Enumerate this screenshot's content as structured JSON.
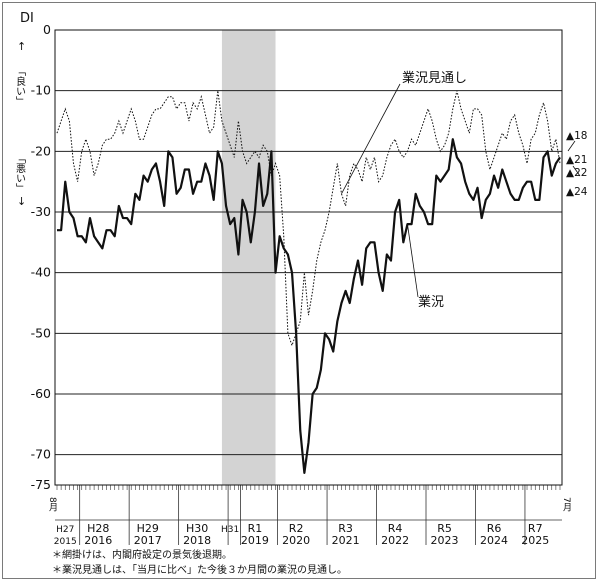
{
  "chart_data": {
    "type": "line",
    "ylabel": "DI",
    "ylim": [
      -75,
      0
    ],
    "yticks": [
      0,
      -10,
      -20,
      -30,
      -40,
      -50,
      -60,
      -70,
      -75
    ],
    "yaxis_note_top": "「良い」",
    "yaxis_note_bottom": "「悪い」",
    "arrow_up": "↑",
    "arrow_down": "↓",
    "start_month": "8月",
    "end_month": "7月",
    "recession_shade": {
      "from_index": 40,
      "to_index": 53
    },
    "year_labels": [
      {
        "top": "H27",
        "bottom": "2015",
        "index": 2
      },
      {
        "top": "H28",
        "bottom": "2016",
        "index": 10
      },
      {
        "top": "H29",
        "bottom": "2017",
        "index": 22
      },
      {
        "top": "H30",
        "bottom": "2018",
        "index": 34
      },
      {
        "top": "H31",
        "bottom": "",
        "index": 42
      },
      {
        "top": "R1",
        "bottom": "2019",
        "index": 48
      },
      {
        "top": "R2",
        "bottom": "2020",
        "index": 58
      },
      {
        "top": "R3",
        "bottom": "2021",
        "index": 70
      },
      {
        "top": "R4",
        "bottom": "2022",
        "index": 82
      },
      {
        "top": "R5",
        "bottom": "2023",
        "index": 94
      },
      {
        "top": "R6",
        "bottom": "2024",
        "index": 106
      },
      {
        "top": "R7",
        "bottom": "2025",
        "index": 116
      }
    ],
    "year_dividers": [
      5,
      17,
      29,
      41,
      44,
      53,
      65,
      77,
      89,
      101,
      113
    ],
    "series": [
      {
        "name": "業況",
        "style": "solid",
        "values": [
          -33,
          -33,
          -25,
          -30,
          -31,
          -34,
          -34,
          -35,
          -31,
          -34,
          -35,
          -36,
          -33,
          -33,
          -34,
          -29,
          -31,
          -31,
          -32,
          -27,
          -28,
          -24,
          -25,
          -23,
          -22,
          -25,
          -29,
          -20,
          -21,
          -27,
          -26,
          -23,
          -23,
          -27,
          -25,
          -25,
          -22,
          -24,
          -28,
          -20,
          -22,
          -29,
          -32,
          -31,
          -37,
          -28,
          -30,
          -35,
          -30,
          -22,
          -29,
          -27,
          -20,
          -40,
          -34,
          -36,
          -37,
          -40,
          -50,
          -66,
          -73,
          -68,
          -60,
          -59,
          -56,
          -50,
          -51,
          -53,
          -48,
          -45,
          -43,
          -45,
          -41,
          -38,
          -42,
          -36,
          -35,
          -35,
          -40,
          -43,
          -37,
          -38,
          -30,
          -28,
          -35,
          -32,
          -32,
          -27,
          -29,
          -30,
          -32,
          -32,
          -24,
          -25,
          -24,
          -23,
          -18,
          -21,
          -22,
          -25,
          -27,
          -28,
          -26,
          -31,
          -28,
          -27,
          -24,
          -26,
          -23,
          -25,
          -27,
          -28,
          -28,
          -26,
          -25,
          -25,
          -28,
          -28,
          -21,
          -20,
          -24,
          -22,
          -21
        ],
        "end_value": -21,
        "end_label": "▲21"
      },
      {
        "name": "業況見通し",
        "style": "dotted",
        "values": [
          -17,
          -15,
          -13,
          -15,
          -22,
          -25,
          -20,
          -18,
          -20,
          -24,
          -22,
          -19,
          -18,
          -18,
          -17,
          -15,
          -17,
          -15,
          -13,
          -15,
          -18,
          -18,
          -16,
          -14,
          -13,
          -13,
          -12,
          -11,
          -11,
          -13,
          -12,
          -12,
          -15,
          -12,
          -13,
          -11,
          -14,
          -17,
          -16,
          -10,
          -15,
          -17,
          -19,
          -21,
          -15,
          -20,
          -22,
          -21,
          -20,
          -21,
          -19,
          -20,
          -24,
          -22,
          -24,
          -34,
          -50,
          -52,
          -50,
          -48,
          -40,
          -47,
          -43,
          -38,
          -35,
          -33,
          -30,
          -26,
          -22,
          -27,
          -29,
          -24,
          -22,
          -23,
          -25,
          -21,
          -23,
          -21,
          -25,
          -24,
          -21,
          -19,
          -18,
          -20,
          -21,
          -20,
          -18,
          -19,
          -17,
          -15,
          -13,
          -15,
          -18,
          -20,
          -19,
          -17,
          -13,
          -10,
          -13,
          -15,
          -17,
          -13,
          -13,
          -14,
          -20,
          -23,
          -21,
          -19,
          -17,
          -18,
          -15,
          -14,
          -17,
          -19,
          -22,
          -18,
          -17,
          -14,
          -12,
          -15,
          -20,
          -18,
          -22
        ],
        "end_value": -22,
        "end_label": "▲22"
      }
    ],
    "end_labels_extra": [
      {
        "label": "▲18",
        "value": -18
      },
      {
        "label": "▲24",
        "value": -24
      }
    ],
    "annotations": [
      {
        "text": "業況見通し",
        "target_series": 1
      },
      {
        "text": "業況",
        "target_series": 0
      }
    ],
    "footnotes": [
      "＊網掛けは、内閣府設定の景気後退期。",
      "＊業況見通しは、「当月に比べ」た今後３か月間の業況の見通し。"
    ]
  }
}
